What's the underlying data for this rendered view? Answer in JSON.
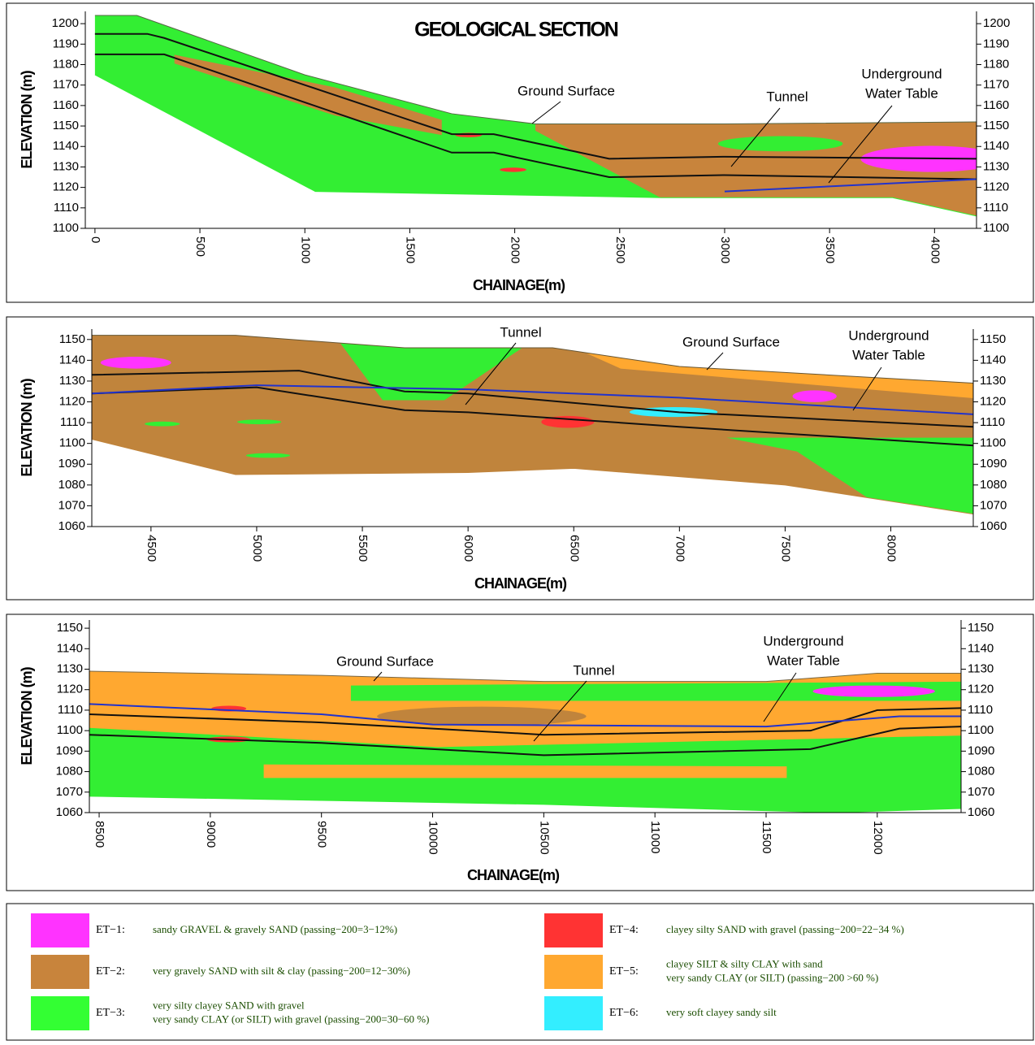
{
  "chart_data": [
    {
      "type": "section",
      "title": "GEOLOGICAL SECTION",
      "x_label": "CHAINAGE(m)",
      "y_label": "ELEVATION (m)",
      "xlim": [
        -46,
        4200
      ],
      "ylim": [
        1100,
        1206
      ],
      "xticks": [
        0,
        500,
        1000,
        1500,
        2000,
        2500,
        3000,
        3500,
        4000
      ],
      "yticks": [
        1100,
        1110,
        1120,
        1130,
        1140,
        1150,
        1160,
        1170,
        1180,
        1190,
        1200
      ],
      "fill": "#33ee33",
      "annotations": [
        [
          "Ground Surface"
        ],
        [
          "Tunnel"
        ],
        [
          "Underground",
          "Water Table"
        ]
      ],
      "series": [
        {
          "color": "#556644",
          "x": [
            0,
            200,
            1000,
            1700,
            2100,
            3000,
            4200
          ],
          "values": [
            1204,
            1204,
            1175,
            1156,
            1151,
            1151,
            1152
          ]
        },
        {
          "color": "#33ee33",
          "x": [
            0,
            1050,
            2700,
            3800,
            4200
          ],
          "values": [
            1175,
            1118,
            1115,
            1115,
            1106
          ]
        },
        {
          "color": "#111111",
          "x": [
            0,
            250,
            330,
            1700,
            1900,
            2450,
            3000,
            4200
          ],
          "values": [
            1195,
            1195,
            1193,
            1146,
            1146,
            1134,
            1135,
            1134
          ]
        },
        {
          "color": "#111111",
          "x": [
            0,
            270,
            330,
            1700,
            1900,
            2450,
            3000,
            4200
          ],
          "values": [
            1185,
            1185,
            1185,
            1137,
            1137,
            1125,
            1126,
            1124
          ]
        },
        {
          "color": "#2233cc",
          "x": [
            3000,
            4200
          ],
          "values": [
            1118,
            1124
          ]
        }
      ]
    },
    {
      "type": "section",
      "x_label": "CHAINAGE(m)",
      "y_label": "ELEVATION (m)",
      "xlim": [
        4220,
        8390
      ],
      "ylim": [
        1060,
        1155
      ],
      "xticks": [
        4500,
        5000,
        5500,
        6000,
        6500,
        7000,
        7500,
        8000
      ],
      "yticks": [
        1060,
        1070,
        1080,
        1090,
        1100,
        1110,
        1120,
        1130,
        1140,
        1150
      ],
      "fill": "#c0843c",
      "annotations": [
        [
          "Tunnel"
        ],
        [
          "Ground Surface"
        ],
        [
          "Underground",
          "Water Table"
        ]
      ],
      "series": [
        {
          "color": "#665533",
          "x": [
            4220,
            4900,
            5700,
            6400,
            7000,
            8390
          ],
          "values": [
            1152,
            1152,
            1146,
            1146,
            1137,
            1129
          ]
        },
        {
          "color": "#c0843c",
          "x": [
            4220,
            4900,
            6000,
            6500,
            7500,
            8390
          ],
          "values": [
            1102,
            1085,
            1086,
            1088,
            1080,
            1066
          ]
        },
        {
          "color": "#111111",
          "x": [
            4220,
            5200,
            5700,
            6000,
            7000,
            8390
          ],
          "values": [
            1133,
            1135,
            1125,
            1124,
            1115,
            1108
          ]
        },
        {
          "color": "#111111",
          "x": [
            4220,
            5000,
            5700,
            6000,
            7000,
            8390
          ],
          "values": [
            1124,
            1127,
            1116,
            1115,
            1108,
            1099
          ]
        },
        {
          "color": "#2233cc",
          "x": [
            4220,
            5000,
            6000,
            7000,
            8390
          ],
          "values": [
            1124,
            1128,
            1126,
            1122,
            1114
          ]
        }
      ]
    },
    {
      "type": "section",
      "x_label": "CHAINAGE(m)",
      "y_label": "ELEVATION (m)",
      "xlim": [
        8456,
        12377
      ],
      "ylim": [
        1060,
        1154
      ],
      "xticks": [
        8500,
        9000,
        9500,
        10000,
        10500,
        11000,
        11500,
        12000
      ],
      "yticks": [
        1060,
        1070,
        1080,
        1090,
        1100,
        1110,
        1120,
        1130,
        1140,
        1150
      ],
      "fill": "#ffa830",
      "annotations": [
        [
          "Ground Surface"
        ],
        [
          "Tunnel"
        ],
        [
          "Underground",
          "Water Table"
        ]
      ],
      "series": [
        {
          "color": "#776644",
          "x": [
            8456,
            9500,
            10500,
            11500,
            12000,
            12377
          ],
          "values": [
            1129,
            1127,
            1124,
            1124,
            1128,
            1128
          ]
        },
        {
          "color": "#33ee33",
          "x": [
            8456,
            10500,
            11800,
            12377
          ],
          "values": [
            1068,
            1064,
            1060,
            1062
          ]
        },
        {
          "color": "#111111",
          "x": [
            8456,
            9500,
            10500,
            11700,
            12000,
            12377
          ],
          "values": [
            1108,
            1104,
            1098,
            1100,
            1110,
            1111
          ]
        },
        {
          "color": "#111111",
          "x": [
            8456,
            9500,
            10500,
            11700,
            12100,
            12377
          ],
          "values": [
            1098,
            1094,
            1088,
            1091,
            1101,
            1102
          ]
        },
        {
          "color": "#2233cc",
          "x": [
            8456,
            9500,
            10000,
            11500,
            12100,
            12377
          ],
          "values": [
            1113,
            1108,
            1103,
            1102,
            1107,
            1107
          ]
        }
      ]
    }
  ],
  "legend": {
    "items": [
      {
        "code": "ET−1:",
        "lines": [
          "sandy GRAVEL & gravely SAND (passing−200=3−12%)"
        ],
        "color": "#ff33ff"
      },
      {
        "code": "ET−2:",
        "lines": [
          "very gravely SAND with silt & clay (passing−200=12−30%)"
        ],
        "color": "#c8843c"
      },
      {
        "code": "ET−3:",
        "lines": [
          "very silty clayey SAND with gravel",
          "very sandy CLAY (or SILT) with gravel (passing−200=30−60 %)"
        ],
        "color": "#33ff33"
      },
      {
        "code": "ET−4:",
        "lines": [
          "clayey silty SAND with gravel (passing−200=22−34 %)"
        ],
        "color": "#ff3333"
      },
      {
        "code": "ET−5:",
        "lines": [
          "clayey SILT & silty CLAY with sand",
          "very sandy CLAY (or SILT) (passing−200 >60 %)"
        ],
        "color": "#ffa830"
      },
      {
        "code": "ET−6:",
        "lines": [
          "very soft clayey sandy silt"
        ],
        "color": "#33eeff"
      }
    ]
  }
}
